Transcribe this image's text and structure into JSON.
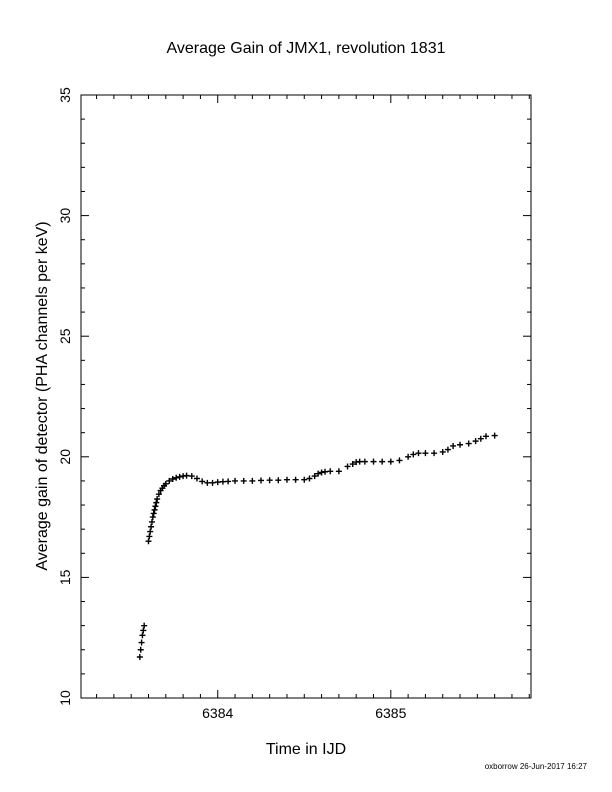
{
  "chart_data": {
    "type": "scatter",
    "title": "Average Gain of JMX1, revolution 1831",
    "xlabel": "Time in IJD",
    "ylabel": "Average gain of detector (PHA channels per keV)",
    "xlim": [
      6383.21,
      6385.81
    ],
    "ylim": [
      10,
      35
    ],
    "x_ticks": [
      6384,
      6385
    ],
    "y_ticks": [
      10,
      15,
      20,
      25,
      30,
      35
    ],
    "marker": "plus",
    "color": "#000000",
    "grid": false,
    "footer": "oxborrow 26-Jun-2017 16:27",
    "x": [
      6383.55,
      6383.555,
      6383.56,
      6383.565,
      6383.57,
      6383.575,
      6383.6,
      6383.605,
      6383.61,
      6383.615,
      6383.62,
      6383.625,
      6383.63,
      6383.635,
      6383.64,
      6383.645,
      6383.65,
      6383.66,
      6383.67,
      6383.68,
      6383.69,
      6383.7,
      6383.72,
      6383.74,
      6383.76,
      6383.78,
      6383.8,
      6383.82,
      6383.85,
      6383.88,
      6383.91,
      6383.94,
      6383.97,
      6384.0,
      6384.03,
      6384.06,
      6384.1,
      6384.15,
      6384.2,
      6384.25,
      6384.3,
      6384.35,
      6384.4,
      6384.45,
      6384.5,
      6384.53,
      6384.56,
      6384.58,
      6384.6,
      6384.62,
      6384.65,
      6384.7,
      6384.75,
      6384.78,
      6384.8,
      6384.82,
      6384.85,
      6384.9,
      6384.95,
      6385.0,
      6385.05,
      6385.1,
      6385.13,
      6385.16,
      6385.2,
      6385.25,
      6385.3,
      6385.33,
      6385.36,
      6385.4,
      6385.45,
      6385.49,
      6385.52,
      6385.55,
      6385.6
    ],
    "y": [
      11.7,
      12.0,
      12.3,
      12.6,
      12.8,
      13.0,
      16.5,
      16.7,
      16.9,
      17.1,
      17.3,
      17.5,
      17.65,
      17.8,
      17.95,
      18.1,
      18.25,
      18.45,
      18.6,
      18.7,
      18.8,
      18.88,
      19.0,
      19.08,
      19.13,
      19.17,
      19.2,
      19.22,
      19.2,
      19.1,
      18.98,
      18.92,
      18.92,
      18.95,
      18.97,
      18.98,
      19.0,
      19.0,
      19.0,
      19.02,
      19.03,
      19.03,
      19.05,
      19.05,
      19.05,
      19.1,
      19.2,
      19.3,
      19.35,
      19.38,
      19.4,
      19.4,
      19.6,
      19.7,
      19.78,
      19.8,
      19.8,
      19.8,
      19.8,
      19.8,
      19.85,
      20.0,
      20.1,
      20.15,
      20.15,
      20.15,
      20.2,
      20.3,
      20.45,
      20.5,
      20.55,
      20.65,
      20.75,
      20.85,
      20.88
    ]
  }
}
